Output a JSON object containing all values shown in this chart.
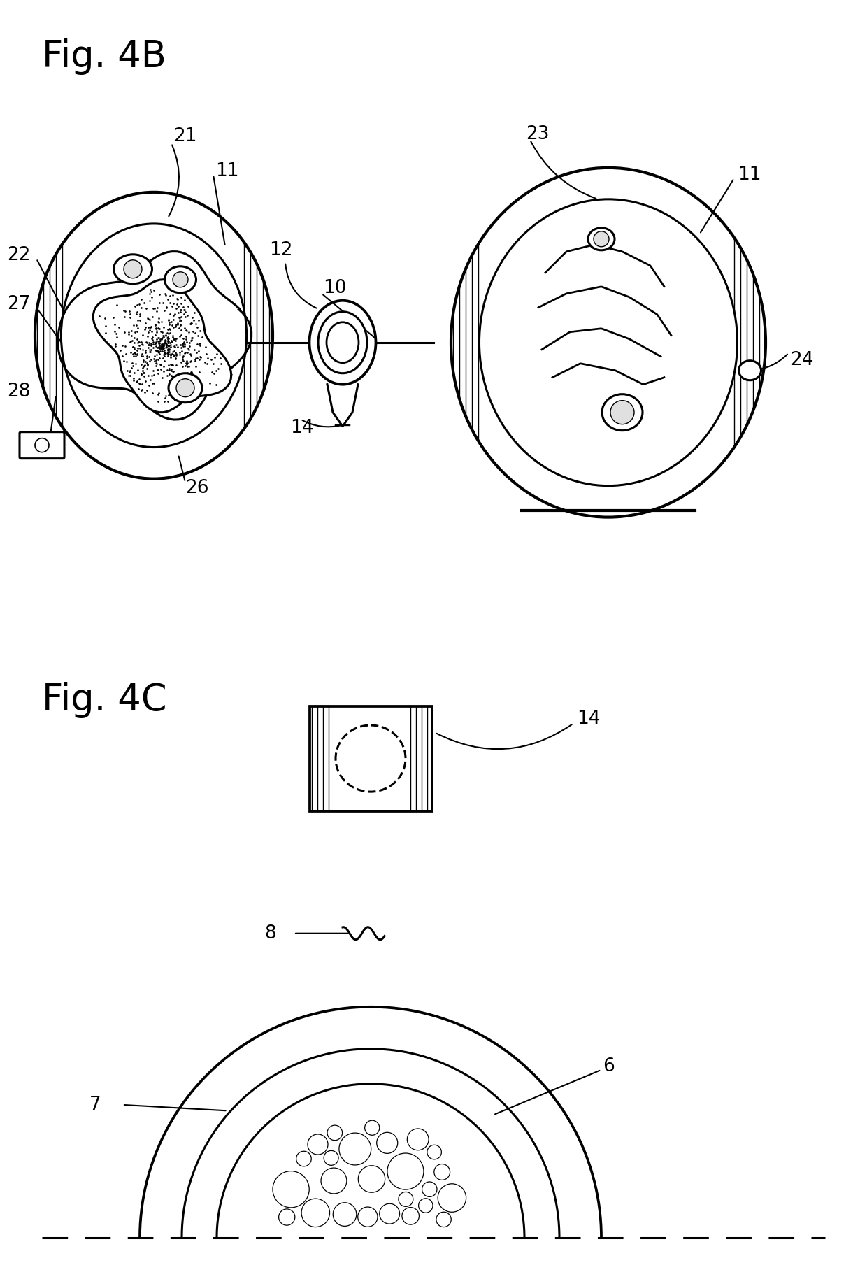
{
  "fig_title_4B": "Fig. 4B",
  "fig_title_4C": "Fig. 4C",
  "bg_color": "#ffffff",
  "line_color": "#000000",
  "title_fontsize": 38,
  "label_fontsize": 19,
  "line_width": 2.2
}
